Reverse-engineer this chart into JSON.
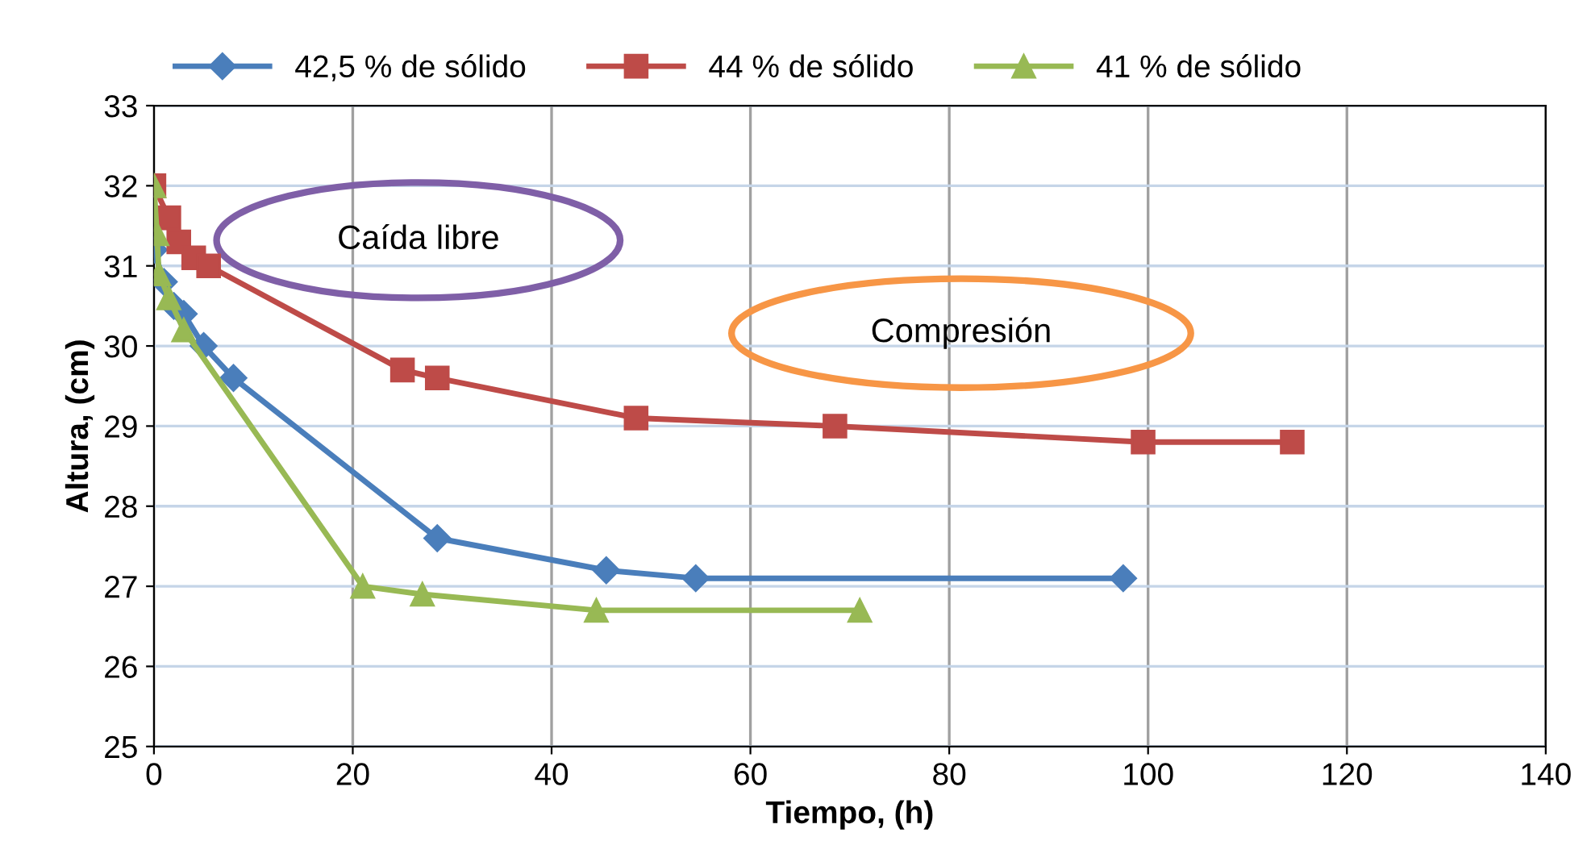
{
  "chart_data": {
    "type": "line",
    "xlabel": "Tiempo, (h)",
    "ylabel": "Altura, (cm)",
    "xlim": [
      0,
      140
    ],
    "xticks": [
      0,
      20,
      40,
      60,
      80,
      100,
      120,
      140
    ],
    "ylim": [
      25,
      33
    ],
    "yticks": [
      25,
      26,
      27,
      28,
      29,
      30,
      31,
      32,
      33
    ],
    "grid": true,
    "legend": "top",
    "line_style": "solid",
    "annotations": [
      "Caída libre",
      "Compresión"
    ],
    "series": [
      {
        "name": "42,5 % de sólido",
        "color": "#4a7ebb",
        "marker": "diamond",
        "x": [
          0,
          1,
          2,
          3,
          5,
          8,
          28.5,
          45.5,
          54.5,
          97.5
        ],
        "values": [
          31.2,
          30.8,
          30.5,
          30.4,
          30.0,
          29.6,
          27.6,
          27.2,
          27.1,
          27.1
        ]
      },
      {
        "name": "44 % de sólido",
        "color": "#be4b48",
        "marker": "square",
        "x": [
          0,
          1.5,
          2.5,
          4,
          5.5,
          25,
          28.5,
          48.5,
          68.5,
          99.5,
          114.5
        ],
        "values": [
          32.0,
          31.6,
          31.3,
          31.1,
          31.0,
          29.7,
          29.6,
          29.1,
          29.0,
          28.8,
          28.8
        ]
      },
      {
        "name": "41 % de sólido",
        "color": "#98b954",
        "marker": "triangle",
        "x": [
          0,
          0.3,
          0.5,
          1.5,
          3,
          21,
          27,
          44.5,
          71
        ],
        "values": [
          32.0,
          31.4,
          30.9,
          30.6,
          30.2,
          27.0,
          26.9,
          26.7,
          26.7
        ]
      }
    ]
  }
}
